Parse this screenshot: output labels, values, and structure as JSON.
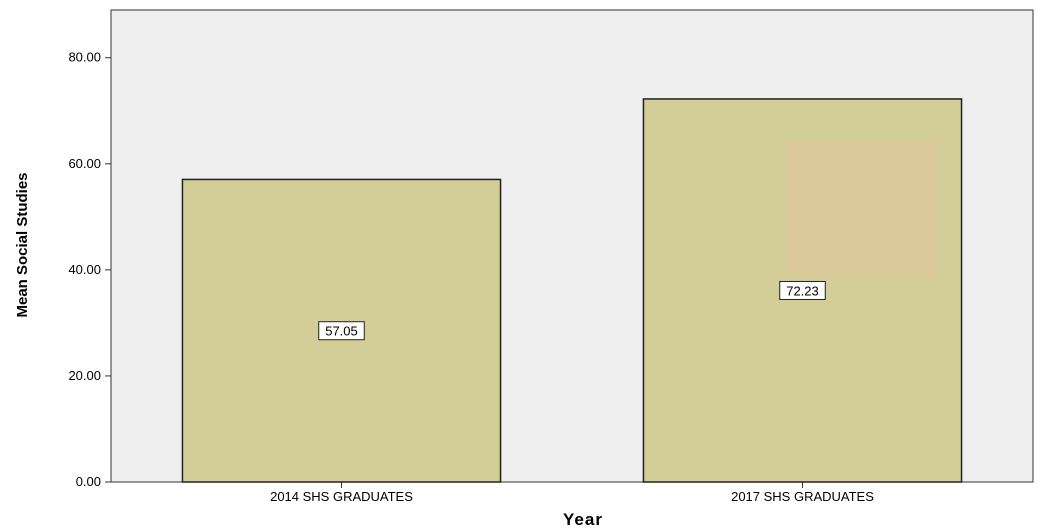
{
  "chart_data": {
    "type": "bar",
    "categories": [
      "2014 SHS GRADUATES",
      "2017 SHS GRADUATES"
    ],
    "values": [
      57.05,
      72.23
    ],
    "data_labels": [
      "57.05",
      "72.23"
    ],
    "xlabel": "Year",
    "ylabel": "Mean Social Studies",
    "ylim": [
      0,
      89
    ],
    "yticks": [
      "0.00",
      "20.00",
      "40.00",
      "60.00",
      "80.00"
    ],
    "ytick_values": [
      0,
      20,
      40,
      60,
      80
    ],
    "grid": false,
    "colors": {
      "plot_background": "#efefef",
      "bar_fill": "#d3cd98",
      "bar_stroke": "#222222",
      "highlight_patch": "#dcc99a"
    }
  }
}
